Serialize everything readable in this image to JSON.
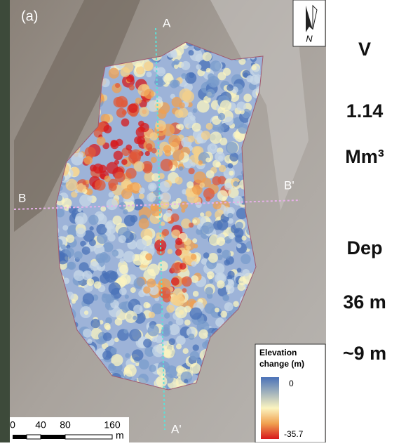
{
  "panel_label": "(a)",
  "north": "N",
  "profiles": {
    "a": "A",
    "a_prime": "A'",
    "b": "B",
    "b_prime": "B'"
  },
  "legend": {
    "title_lines": [
      "Elevation",
      "change (m)"
    ],
    "max_label": "0",
    "min_label": "-35.7"
  },
  "scale_bar": {
    "labels": [
      "0",
      "40",
      "80",
      "160"
    ],
    "unit": "m"
  },
  "side_text": [
    "V",
    "1.14",
    "Mm³",
    "Dep",
    "36 m",
    "~9 m"
  ]
}
